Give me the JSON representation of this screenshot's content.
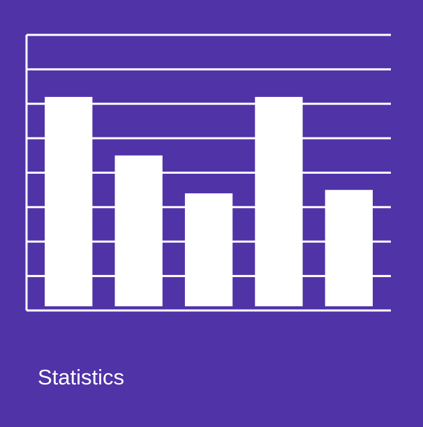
{
  "caption": "Statistics",
  "colors": {
    "background": "#5033a6",
    "foreground": "#ffffff"
  },
  "chart_data": {
    "type": "bar",
    "title": "",
    "xlabel": "",
    "ylabel": "",
    "grid": true,
    "gridlines": 8,
    "ylim": [
      0,
      8
    ],
    "categories": [
      "",
      "",
      "",
      "",
      ""
    ],
    "values": [
      6.2,
      4.5,
      3.4,
      6.2,
      3.5
    ]
  }
}
